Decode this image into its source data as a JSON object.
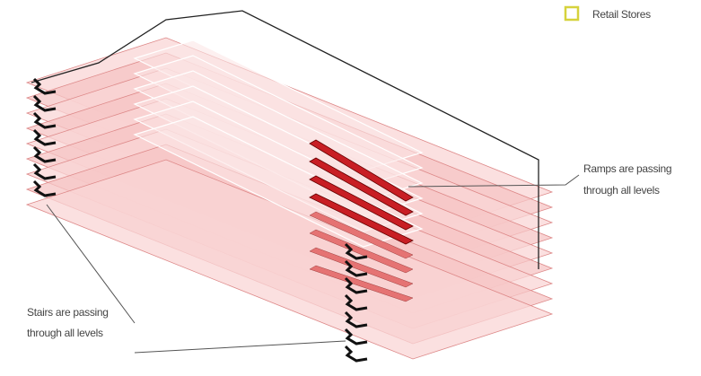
{
  "legend": {
    "label": "Retail Stores"
  },
  "annotations": [
    {
      "lines": [
        "Ramps are passing",
        "through all levels"
      ]
    },
    {
      "lines": [
        "Stairs are passing",
        "through all levels"
      ]
    }
  ]
}
